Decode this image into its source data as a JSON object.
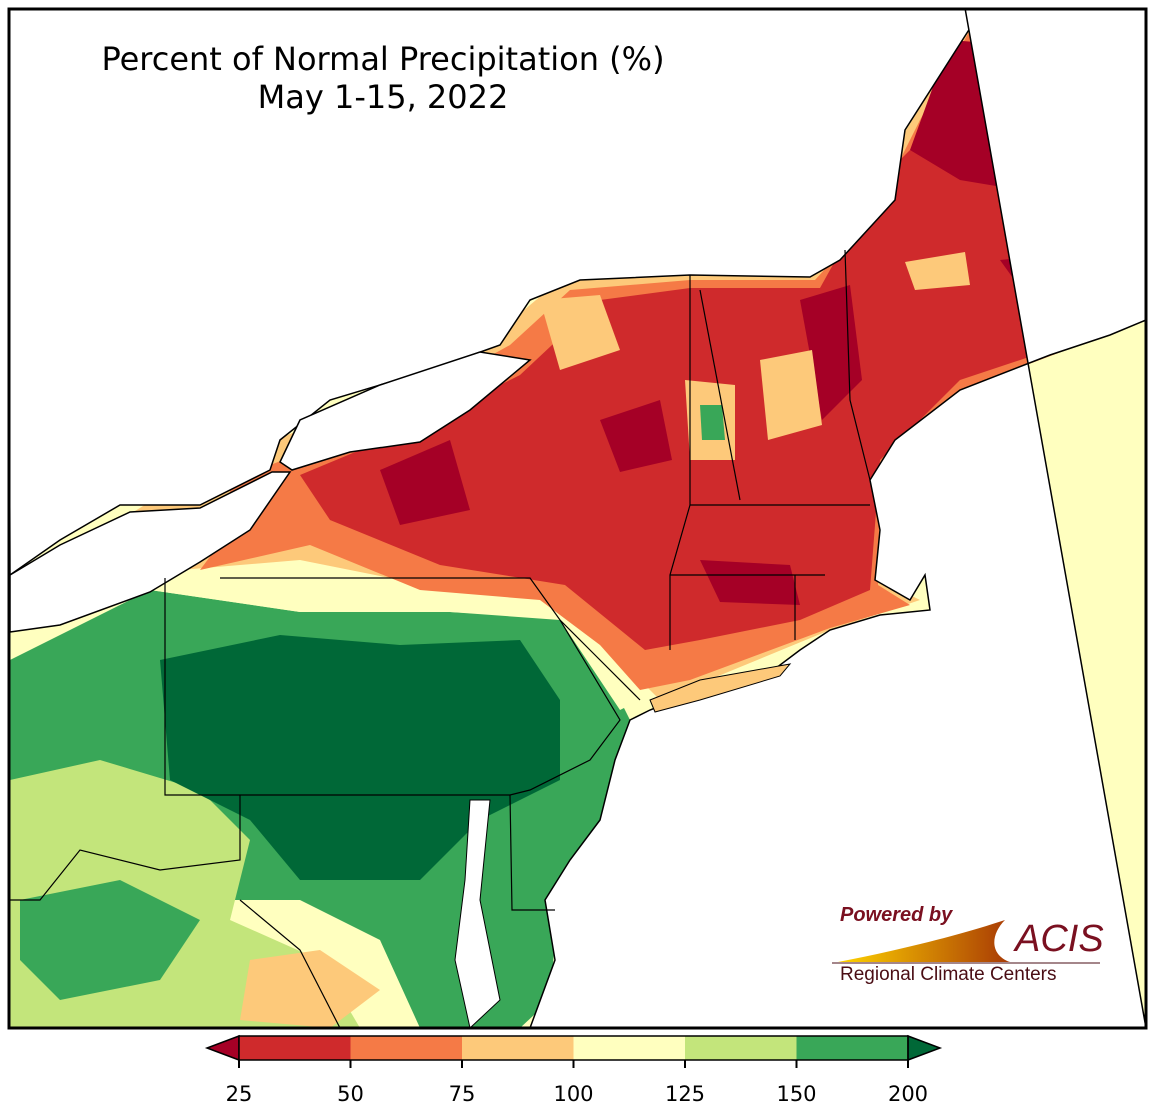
{
  "title": {
    "line1": "Percent of Normal Precipitation (%)",
    "line2": "May 1-15, 2022"
  },
  "colorbar": {
    "ticks": [
      "25",
      "50",
      "75",
      "100",
      "125",
      "150",
      "200"
    ],
    "colors": [
      "#a50026",
      "#cf2a2c",
      "#f57a46",
      "#fdc97a",
      "#ffffbf",
      "#c3e57b",
      "#39a758",
      "#006837"
    ]
  },
  "logo": {
    "powered_by": "Powered by",
    "acis": "ACIS",
    "subtitle": "Regional Climate Centers"
  }
}
